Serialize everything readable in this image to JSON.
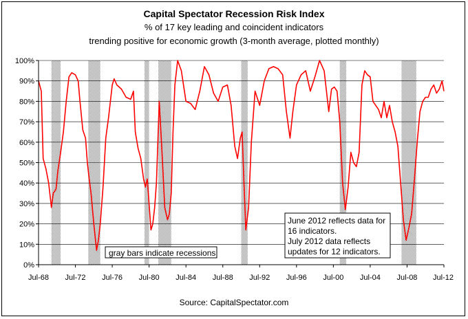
{
  "chart_data": {
    "type": "line",
    "title": "Capital Spectator Recession Risk Index",
    "subtitle_lines": [
      "% of 17 key leading and coincident indicators",
      "trending positive for economic growth (3-month average, plotted monthly)"
    ],
    "source": "Source: CapitalSpectator.com",
    "x_range": [
      1968.5,
      2012.5
    ],
    "y_range": [
      0,
      100
    ],
    "y_ticks": [
      {
        "v": 0,
        "label": "0%"
      },
      {
        "v": 10,
        "label": "10%"
      },
      {
        "v": 20,
        "label": "20%"
      },
      {
        "v": 30,
        "label": "30%"
      },
      {
        "v": 40,
        "label": "40%"
      },
      {
        "v": 50,
        "label": "50%"
      },
      {
        "v": 60,
        "label": "60%"
      },
      {
        "v": 70,
        "label": "70%"
      },
      {
        "v": 80,
        "label": "80%"
      },
      {
        "v": 90,
        "label": "90%"
      },
      {
        "v": 100,
        "label": "100%"
      }
    ],
    "x_ticks": [
      {
        "v": 1968.5,
        "label": "Jul-68"
      },
      {
        "v": 1972.5,
        "label": "Jul-72"
      },
      {
        "v": 1976.5,
        "label": "Jul-76"
      },
      {
        "v": 1980.5,
        "label": "Jul-80"
      },
      {
        "v": 1984.5,
        "label": "Jul-84"
      },
      {
        "v": 1988.5,
        "label": "Jul-88"
      },
      {
        "v": 1992.5,
        "label": "Jul-92"
      },
      {
        "v": 1996.5,
        "label": "Jul-96"
      },
      {
        "v": 2000.5,
        "label": "Jul-00"
      },
      {
        "v": 2004.5,
        "label": "Jul-04"
      },
      {
        "v": 2008.5,
        "label": "Jul-08"
      },
      {
        "v": 2012.5,
        "label": "Jul-12"
      }
    ],
    "grid": "horizontal",
    "series_color": "#ff0000",
    "recession_color": "#c8c8c8",
    "recessions": [
      {
        "start": 1969.9,
        "end": 1970.9
      },
      {
        "start": 1973.9,
        "end": 1975.2
      },
      {
        "start": 1980.0,
        "end": 1980.5
      },
      {
        "start": 1981.5,
        "end": 1982.9
      },
      {
        "start": 1990.5,
        "end": 1991.2
      },
      {
        "start": 2001.2,
        "end": 2001.9
      },
      {
        "start": 2007.9,
        "end": 2009.5
      }
    ],
    "series": [
      {
        "x": [
          1968.5,
          1968.8,
          1969.0,
          1969.3,
          1969.6,
          1969.9,
          1970.1,
          1970.4,
          1970.6,
          1970.9,
          1971.2,
          1971.5,
          1971.8,
          1972.1,
          1972.5,
          1972.8,
          1973.0,
          1973.3,
          1973.6,
          1973.8,
          1974.0,
          1974.2,
          1974.5,
          1974.8,
          1975.0,
          1975.2,
          1975.5,
          1975.8,
          1976.1,
          1976.5,
          1976.7,
          1977.0,
          1977.5,
          1978.0,
          1978.5,
          1978.8,
          1979.0,
          1979.3,
          1979.6,
          1979.9,
          1980.1,
          1980.3,
          1980.5,
          1980.7,
          1980.9,
          1981.1,
          1981.3,
          1981.6,
          1981.9,
          1982.2,
          1982.5,
          1982.7,
          1982.9,
          1983.1,
          1983.3,
          1983.6,
          1984.0,
          1984.5,
          1985.0,
          1985.5,
          1986.0,
          1986.5,
          1987.0,
          1987.5,
          1988.0,
          1988.5,
          1989.0,
          1989.4,
          1989.8,
          1990.1,
          1990.4,
          1990.6,
          1990.8,
          1991.0,
          1991.3,
          1991.6,
          1992.0,
          1992.5,
          1993.0,
          1993.5,
          1994.0,
          1994.5,
          1995.0,
          1995.4,
          1995.8,
          1996.1,
          1996.5,
          1997.0,
          1997.5,
          1998.0,
          1998.5,
          1999.0,
          1999.5,
          2000.0,
          2000.3,
          2000.6,
          2000.9,
          2001.2,
          2001.5,
          2001.8,
          2002.1,
          2002.4,
          2002.7,
          2003.0,
          2003.3,
          2003.6,
          2003.9,
          2004.2,
          2004.5,
          2004.8,
          2005.1,
          2005.4,
          2005.7,
          2006.0,
          2006.3,
          2006.6,
          2006.9,
          2007.2,
          2007.5,
          2007.8,
          2008.1,
          2008.4,
          2008.7,
          2009.0,
          2009.3,
          2009.6,
          2009.9,
          2010.2,
          2010.5,
          2010.8,
          2011.1,
          2011.4,
          2011.7,
          2012.0,
          2012.3,
          2012.5
        ],
        "y": [
          90,
          85,
          52,
          47,
          40,
          28,
          35,
          37,
          46,
          55,
          65,
          80,
          92,
          94,
          93,
          90,
          80,
          66,
          62,
          50,
          42,
          35,
          20,
          7,
          12,
          20,
          38,
          62,
          72,
          88,
          91,
          88,
          86,
          82,
          81,
          85,
          65,
          57,
          52,
          42,
          38,
          42,
          30,
          17,
          20,
          28,
          40,
          80,
          55,
          28,
          22,
          25,
          35,
          65,
          88,
          100,
          95,
          80,
          79,
          76,
          85,
          97,
          93,
          84,
          80,
          87,
          88,
          78,
          58,
          52,
          62,
          65,
          40,
          17,
          28,
          60,
          85,
          78,
          90,
          96,
          97,
          96,
          93,
          75,
          62,
          75,
          88,
          93,
          95,
          85,
          92,
          100,
          95,
          75,
          86,
          87,
          85,
          70,
          40,
          27,
          38,
          55,
          50,
          48,
          55,
          88,
          95,
          93,
          92,
          80,
          78,
          76,
          72,
          80,
          72,
          78,
          70,
          65,
          58,
          40,
          22,
          12,
          18,
          25,
          42,
          60,
          75,
          80,
          82,
          82,
          86,
          88,
          84,
          86,
          90,
          85
        ]
      }
    ],
    "annotations": {
      "recession_note": "gray bars indicate recessions",
      "data_note_lines": [
        "June 2012 reflects data for",
        "16 indicators.",
        "July 2012 data reflects",
        "updates for 12 indicators."
      ]
    }
  }
}
